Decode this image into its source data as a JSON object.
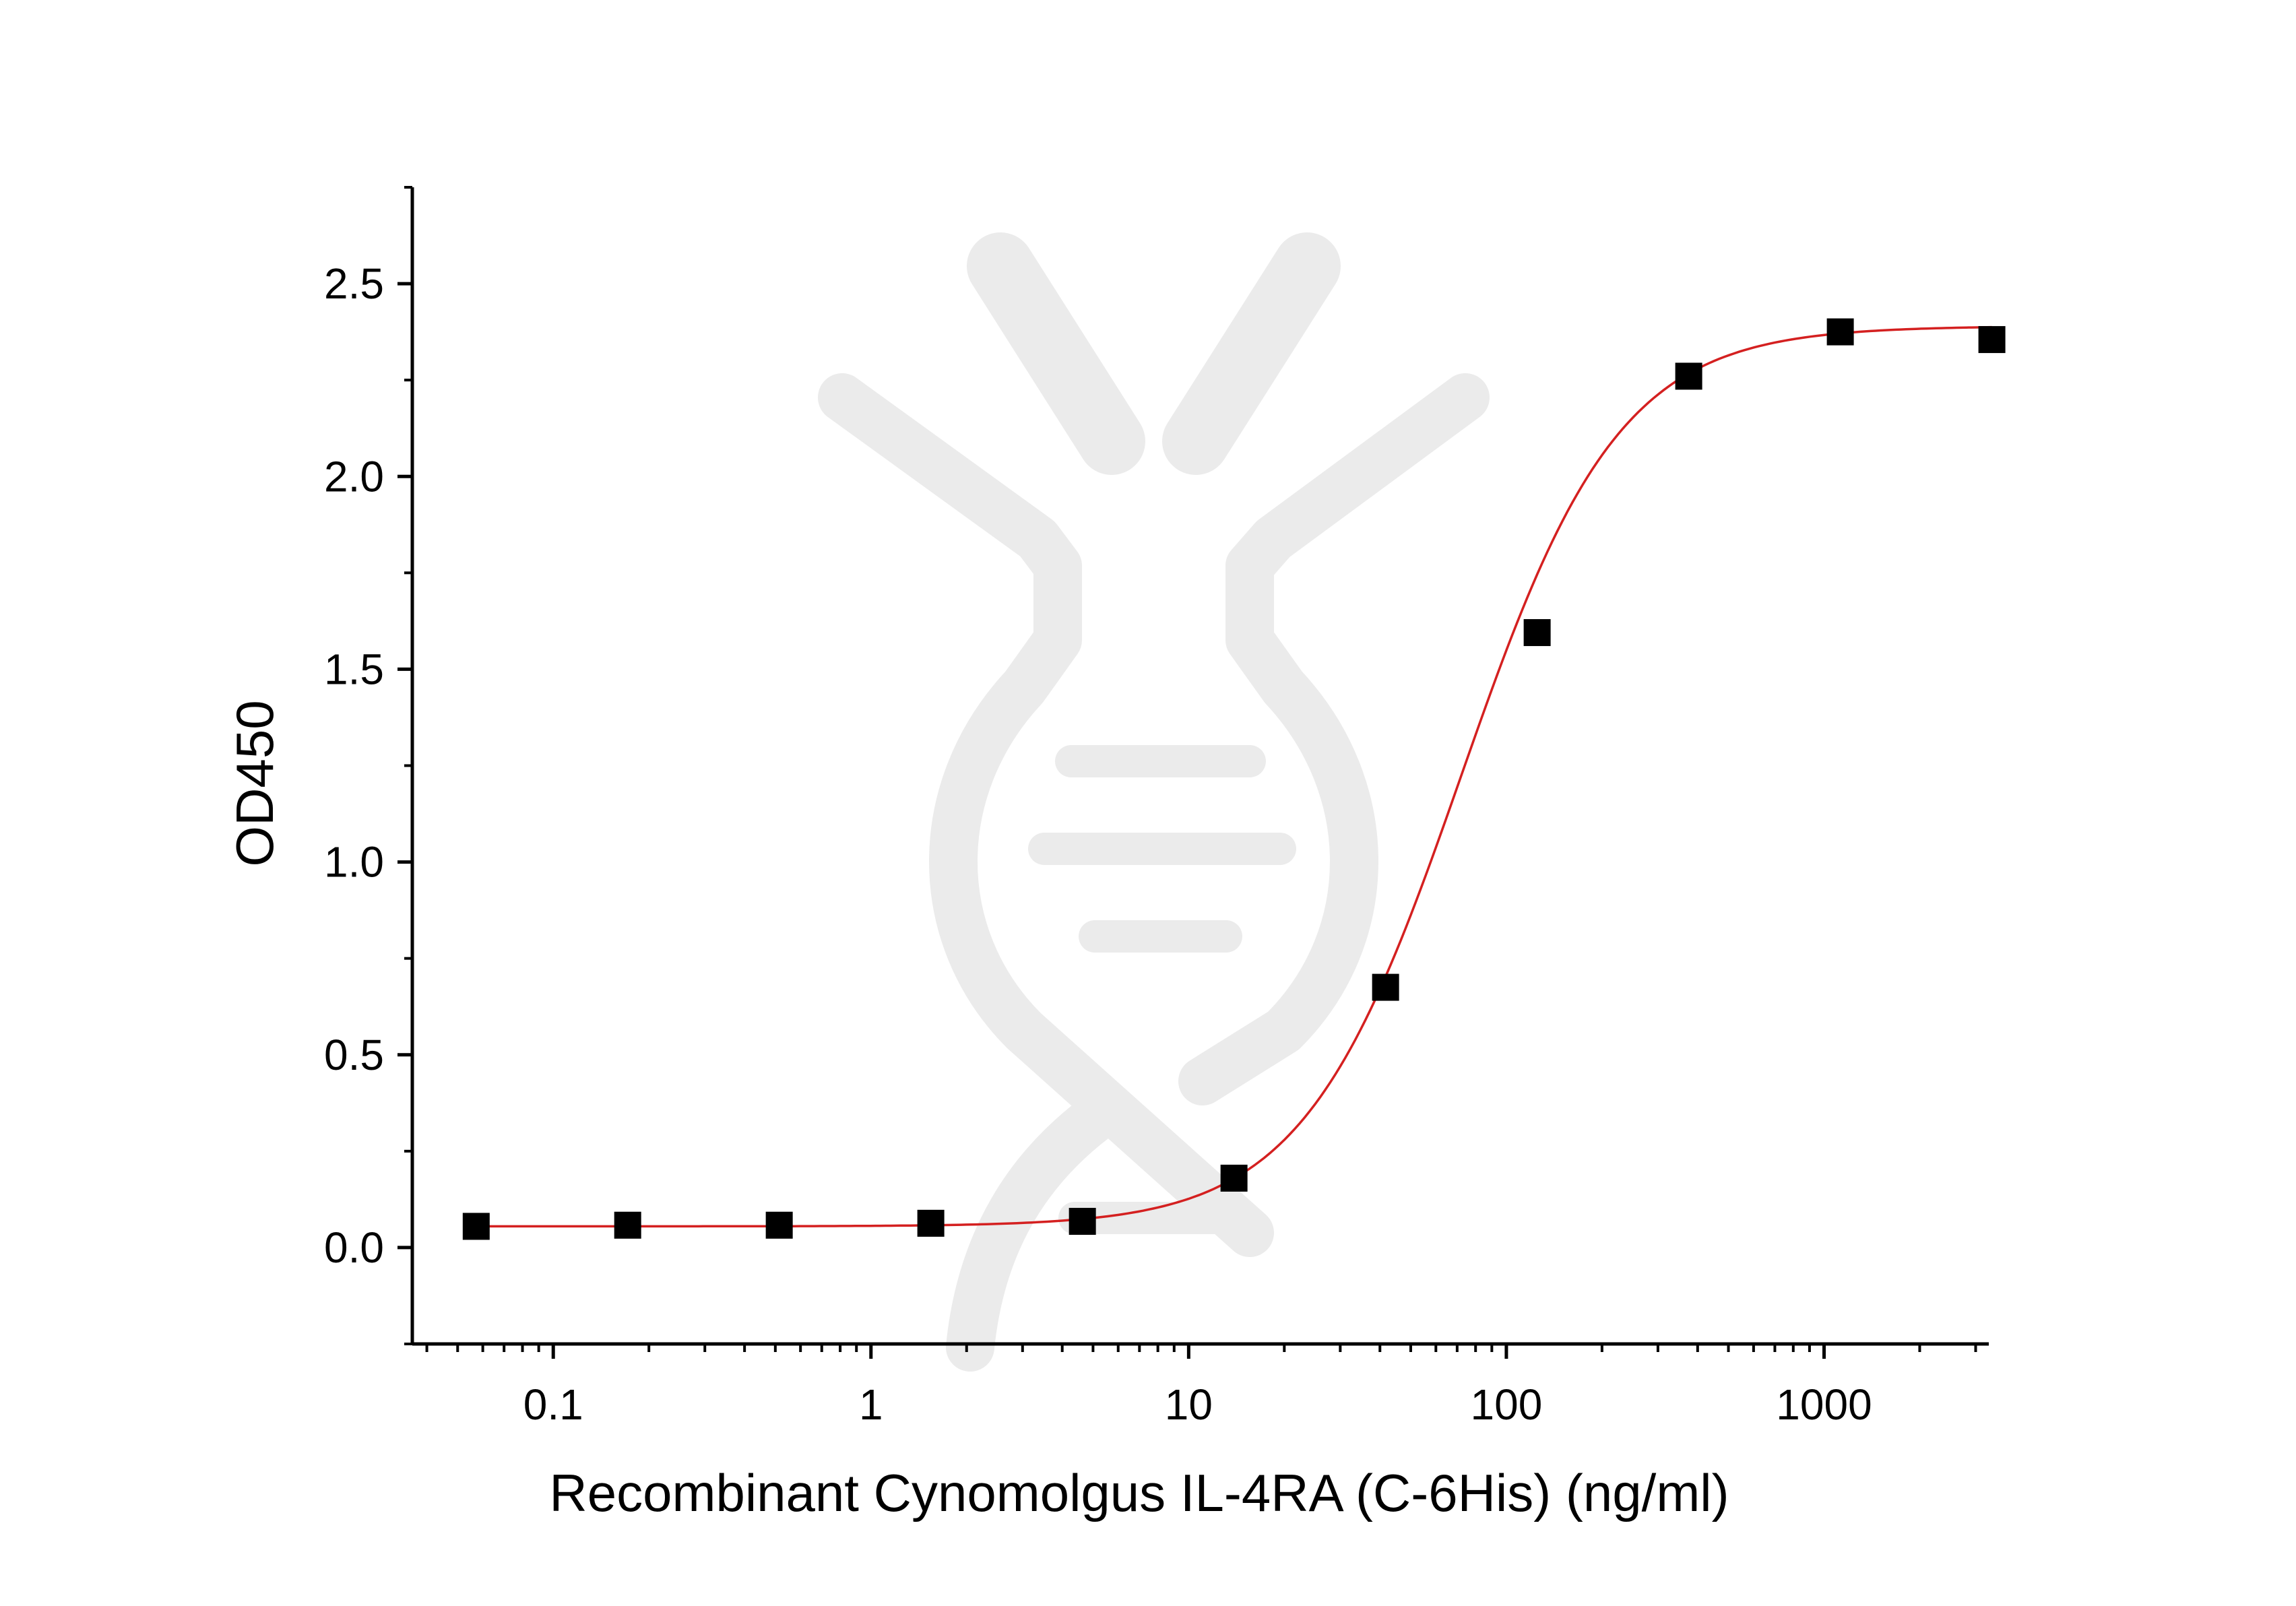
{
  "chart_data": {
    "type": "scatter",
    "title": "",
    "xlabel": "Recombinant Cynomolgus IL-4RA (C-6His) (ng/ml)",
    "ylabel": "OD450",
    "x_scale": "log",
    "xlim": [
      0.036,
      3300
    ],
    "ylim": [
      -0.25,
      2.75
    ],
    "x_ticks": [
      0.1,
      1,
      10,
      100,
      1000
    ],
    "x_tick_labels": [
      "0.1",
      "1",
      "10",
      "100",
      "1000"
    ],
    "y_ticks": [
      0.0,
      0.5,
      1.0,
      1.5,
      2.0,
      2.5
    ],
    "y_tick_labels": [
      "0.0",
      "0.5",
      "1.0",
      "1.5",
      "2.0",
      "2.5"
    ],
    "grid": false,
    "series": [
      {
        "marker": "square",
        "color": "#000000",
        "x": [
          0.0572,
          0.1715,
          0.5144,
          1.543,
          4.63,
          13.89,
          41.67,
          125,
          375,
          1125,
          3375
        ],
        "y": [
          0.055,
          0.058,
          0.058,
          0.063,
          0.068,
          0.18,
          0.675,
          1.595,
          2.26,
          2.375,
          2.355
        ]
      }
    ],
    "fit_curve": {
      "model": "4PL",
      "color": "#d42020",
      "bottom": 0.055,
      "top": 2.39,
      "ec50": 72,
      "hill": 1.75
    }
  },
  "watermark": {
    "type": "dna-logo",
    "color": "#ebebeb"
  }
}
